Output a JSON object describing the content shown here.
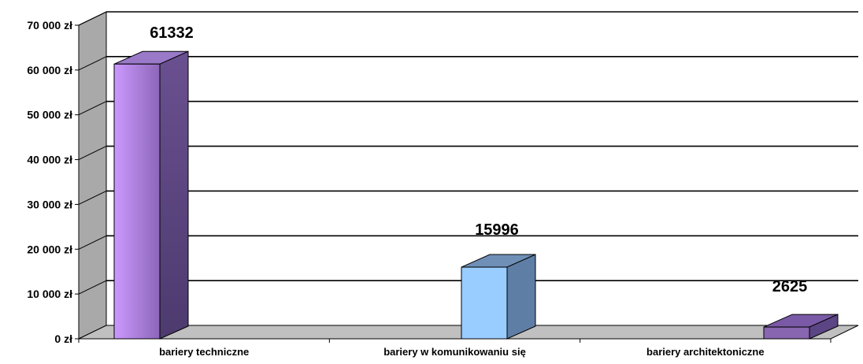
{
  "chart_data": {
    "type": "bar",
    "style": "3d-column",
    "title": "",
    "xlabel": "",
    "ylabel": "",
    "categories": [
      "bariery techniczne",
      "bariery w komunikowaniu się",
      "bariery architektoniczne"
    ],
    "values": [
      61332,
      15996,
      2625
    ],
    "value_labels": [
      "61332",
      "15996",
      "2625"
    ],
    "ylim": [
      0,
      70000
    ],
    "yticks": [
      0,
      10000,
      20000,
      30000,
      40000,
      50000,
      60000,
      70000
    ],
    "ytick_labels": [
      "0 zł",
      "10 000 zł",
      "20 000 zł",
      "30 000 zł",
      "40 000 zł",
      "50 000 zł",
      "60 000 zł",
      "70 000 zł"
    ],
    "grid": true,
    "legend": "none",
    "colors": {
      "bars": [
        {
          "front_light": "#cc99ff",
          "front_dark": "#8c66b8",
          "top": "#9a7ac8",
          "side": "#4d3a6e"
        },
        {
          "front_light": "#99ccff",
          "front_dark": "#99ccff",
          "top": "#6f8fb6",
          "side": "#5e7ea6"
        },
        {
          "front_light": "#8866b0",
          "front_dark": "#8866b0",
          "top": "#7a5aa6",
          "side": "#5c4585"
        }
      ],
      "wall": "#a9a9a9",
      "floor": "#c0c0c0",
      "gridline": "#000000"
    }
  }
}
